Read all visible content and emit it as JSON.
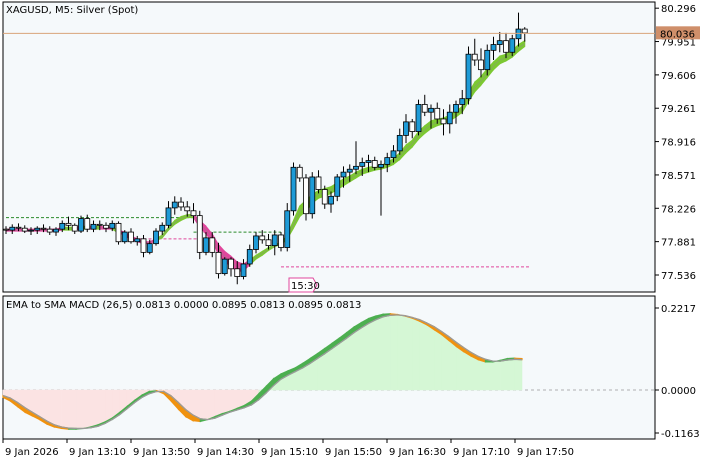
{
  "header": {
    "title": "XAGUSD, M5:  Silver (Spot)"
  },
  "indicator": {
    "title": "EMA to SMA MACD (26,5) 0.0813 0.0000 0.0895 0.0813 0.0895 0.0813"
  },
  "time_marker": {
    "label": "15:30"
  },
  "current_price": {
    "label": "80.036",
    "value": 80.036
  },
  "price_axis": {
    "ticks": [
      "80.296",
      "79.951",
      "79.606",
      "79.261",
      "78.916",
      "78.571",
      "78.226",
      "77.881",
      "77.536"
    ]
  },
  "macd_axis": {
    "ticks": [
      "0.2217",
      "0.0000",
      "-0.1163"
    ]
  },
  "time_axis": {
    "ticks": [
      "9 Jan 2026",
      "9 Jan 13:10",
      "9 Jan 13:50",
      "9 Jan 14:30",
      "9 Jan 15:10",
      "9 Jan 15:50",
      "9 Jan 16:30",
      "9 Jan 17:10",
      "9 Jan 17:50"
    ]
  },
  "colors": {
    "background": "#f5f9fb",
    "bull_candle": "#1e9bd7",
    "bear_candle": "#ffffff",
    "ribbon_up": "#7cc832",
    "ribbon_down": "#e0479c",
    "stop_up": "#2a8a2a",
    "stop_down": "#e0479c",
    "macd_up": "#4caf50",
    "macd_down": "#f0920f",
    "fill_pos": "#d5f7d5",
    "fill_neg": "#fbe3e3",
    "price_line": "#d9a47a",
    "label_box": "#cf8f6a"
  },
  "chart_data": [
    {
      "type": "candlestick",
      "title": "XAGUSD, M5:  Silver (Spot)",
      "ylim": [
        77.36,
        80.36
      ],
      "y_ticks": [
        80.296,
        79.951,
        79.606,
        79.261,
        78.916,
        78.571,
        78.226,
        77.881,
        77.536
      ],
      "current_price": 80.036,
      "x_tick_labels": [
        "9 Jan 2026",
        "9 Jan 13:10",
        "9 Jan 13:50",
        "9 Jan 14:30",
        "9 Jan 15:10",
        "9 Jan 15:50",
        "9 Jan 16:30",
        "9 Jan 17:10",
        "9 Jan 17:50"
      ],
      "candles": [
        [
          78.01,
          78.04,
          77.96,
          78.0
        ],
        [
          78.0,
          78.06,
          77.96,
          78.03
        ],
        [
          78.03,
          78.07,
          77.99,
          78.02
        ],
        [
          78.02,
          78.05,
          77.97,
          77.99
        ],
        [
          77.99,
          78.03,
          77.95,
          78.0
        ],
        [
          78.0,
          78.04,
          77.96,
          78.02
        ],
        [
          78.02,
          78.06,
          77.98,
          78.01
        ],
        [
          78.01,
          78.04,
          77.95,
          77.98
        ],
        [
          77.98,
          78.03,
          77.94,
          78.01
        ],
        [
          78.01,
          78.1,
          77.98,
          78.07
        ],
        [
          78.07,
          78.14,
          78.0,
          78.05
        ],
        [
          78.05,
          78.07,
          77.96,
          77.99
        ],
        [
          77.99,
          78.15,
          77.97,
          78.12
        ],
        [
          78.12,
          78.16,
          77.98,
          78.01
        ],
        [
          78.01,
          78.1,
          77.98,
          78.06
        ],
        [
          78.06,
          78.1,
          78.0,
          78.05
        ],
        [
          78.05,
          78.08,
          77.98,
          78.02
        ],
        [
          78.02,
          78.1,
          77.99,
          78.07
        ],
        [
          78.07,
          78.09,
          77.85,
          77.88
        ],
        [
          77.88,
          78.0,
          77.86,
          77.98
        ],
        [
          77.98,
          78.02,
          77.86,
          77.88
        ],
        [
          77.88,
          77.94,
          77.84,
          77.91
        ],
        [
          77.91,
          77.95,
          77.72,
          77.77
        ],
        [
          77.77,
          77.9,
          77.75,
          77.86
        ],
        [
          77.86,
          78.02,
          77.84,
          77.99
        ],
        [
          77.99,
          78.08,
          77.95,
          78.05
        ],
        [
          78.05,
          78.3,
          78.02,
          78.23
        ],
        [
          78.23,
          78.35,
          78.16,
          78.29
        ],
        [
          78.29,
          78.34,
          78.2,
          78.24
        ],
        [
          78.24,
          78.3,
          78.14,
          78.2
        ],
        [
          78.2,
          78.28,
          78.07,
          78.15
        ],
        [
          78.15,
          78.2,
          77.7,
          77.77
        ],
        [
          77.77,
          77.98,
          77.74,
          77.92
        ],
        [
          77.92,
          77.98,
          77.72,
          77.77
        ],
        [
          77.77,
          77.87,
          77.5,
          77.55
        ],
        [
          77.55,
          77.72,
          77.53,
          77.7
        ],
        [
          77.7,
          77.72,
          77.52,
          77.6
        ],
        [
          77.6,
          77.68,
          77.44,
          77.52
        ],
        [
          77.52,
          77.7,
          77.49,
          77.65
        ],
        [
          77.65,
          77.85,
          77.62,
          77.8
        ],
        [
          77.8,
          77.98,
          77.76,
          77.94
        ],
        [
          77.94,
          78.0,
          77.86,
          77.9
        ],
        [
          77.9,
          77.96,
          77.8,
          77.84
        ],
        [
          77.84,
          78.0,
          77.74,
          77.95
        ],
        [
          77.95,
          77.98,
          77.78,
          77.82
        ],
        [
          77.82,
          78.28,
          77.78,
          78.2
        ],
        [
          78.2,
          78.7,
          78.15,
          78.65
        ],
        [
          78.65,
          78.68,
          78.5,
          78.54
        ],
        [
          78.54,
          78.58,
          78.1,
          78.17
        ],
        [
          78.17,
          78.6,
          78.12,
          78.55
        ],
        [
          78.55,
          78.62,
          78.38,
          78.42
        ],
        [
          78.42,
          78.46,
          78.22,
          78.27
        ],
        [
          78.27,
          78.4,
          78.18,
          78.35
        ],
        [
          78.35,
          78.58,
          78.3,
          78.55
        ],
        [
          78.55,
          78.66,
          78.44,
          78.6
        ],
        [
          78.6,
          78.68,
          78.5,
          78.63
        ],
        [
          78.63,
          78.92,
          78.58,
          78.66
        ],
        [
          78.66,
          78.75,
          78.56,
          78.7
        ],
        [
          78.7,
          78.78,
          78.6,
          78.72
        ],
        [
          78.72,
          78.76,
          78.62,
          78.65
        ],
        [
          78.65,
          78.72,
          78.15,
          78.68
        ],
        [
          78.68,
          78.8,
          78.6,
          78.75
        ],
        [
          78.75,
          78.88,
          78.7,
          78.82
        ],
        [
          78.82,
          79.05,
          78.78,
          78.98
        ],
        [
          78.98,
          79.2,
          78.9,
          79.12
        ],
        [
          79.12,
          79.15,
          78.95,
          79.02
        ],
        [
          79.02,
          79.35,
          78.98,
          79.3
        ],
        [
          79.3,
          79.4,
          79.18,
          79.22
        ],
        [
          79.22,
          79.3,
          79.05,
          79.26
        ],
        [
          79.26,
          79.32,
          79.1,
          79.15
        ],
        [
          79.15,
          79.25,
          78.98,
          79.1
        ],
        [
          79.1,
          79.3,
          79.0,
          79.22
        ],
        [
          79.22,
          79.34,
          79.1,
          79.3
        ],
        [
          79.3,
          79.45,
          79.2,
          79.36
        ],
        [
          79.36,
          79.9,
          79.3,
          79.82
        ],
        [
          79.82,
          79.98,
          79.7,
          79.76
        ],
        [
          79.76,
          79.88,
          79.58,
          79.66
        ],
        [
          79.66,
          79.92,
          79.6,
          79.86
        ],
        [
          79.86,
          80.0,
          79.76,
          79.92
        ],
        [
          79.92,
          80.05,
          79.84,
          79.96
        ],
        [
          79.96,
          80.04,
          79.78,
          79.84
        ],
        [
          79.84,
          80.02,
          79.8,
          79.98
        ],
        [
          79.98,
          80.25,
          79.9,
          80.08
        ],
        [
          80.08,
          80.1,
          79.95,
          80.04
        ]
      ],
      "ribbon": [
        [
          78.01,
          77.99
        ],
        [
          78.01,
          77.99
        ],
        [
          78.01,
          77.99
        ],
        [
          78.01,
          77.99
        ],
        [
          78.01,
          77.99
        ],
        [
          78.01,
          77.99
        ],
        [
          78.01,
          77.99
        ],
        [
          78.01,
          77.99
        ],
        [
          78.01,
          77.99
        ],
        [
          78.03,
          78.0
        ],
        [
          78.03,
          78.0
        ],
        [
          78.03,
          78.0
        ],
        [
          78.04,
          78.01
        ],
        [
          78.04,
          78.01
        ],
        [
          78.04,
          78.01
        ],
        [
          78.04,
          78.01
        ],
        [
          78.03,
          78.01
        ],
        [
          78.03,
          78.01
        ],
        [
          78.0,
          77.97
        ],
        [
          77.98,
          77.95
        ],
        [
          77.94,
          77.9
        ],
        [
          77.91,
          77.88
        ],
        [
          77.88,
          77.86
        ],
        [
          77.88,
          77.86
        ],
        [
          77.91,
          77.89
        ],
        [
          77.95,
          77.92
        ],
        [
          78.03,
          78.0
        ],
        [
          78.1,
          78.06
        ],
        [
          78.14,
          78.1
        ],
        [
          78.16,
          78.13
        ],
        [
          78.16,
          78.13
        ],
        [
          78.1,
          78.03
        ],
        [
          78.04,
          77.96
        ],
        [
          77.96,
          77.88
        ],
        [
          77.85,
          77.75
        ],
        [
          77.78,
          77.67
        ],
        [
          77.73,
          77.63
        ],
        [
          77.67,
          77.57
        ],
        [
          77.65,
          77.58
        ],
        [
          77.69,
          77.64
        ],
        [
          77.74,
          77.7
        ],
        [
          77.78,
          77.74
        ],
        [
          77.82,
          77.79
        ],
        [
          77.85,
          77.83
        ],
        [
          77.87,
          77.85
        ],
        [
          77.95,
          77.91
        ],
        [
          78.1,
          78.02
        ],
        [
          78.25,
          78.14
        ],
        [
          78.31,
          78.2
        ],
        [
          78.37,
          78.28
        ],
        [
          78.41,
          78.33
        ],
        [
          78.43,
          78.35
        ],
        [
          78.45,
          78.38
        ],
        [
          78.49,
          78.42
        ],
        [
          78.53,
          78.46
        ],
        [
          78.56,
          78.5
        ],
        [
          78.6,
          78.54
        ],
        [
          78.63,
          78.58
        ],
        [
          78.65,
          78.6
        ],
        [
          78.66,
          78.62
        ],
        [
          78.67,
          78.63
        ],
        [
          78.7,
          78.65
        ],
        [
          78.74,
          78.68
        ],
        [
          78.8,
          78.73
        ],
        [
          78.88,
          78.8
        ],
        [
          78.93,
          78.86
        ],
        [
          79.02,
          78.94
        ],
        [
          79.08,
          79.0
        ],
        [
          79.13,
          79.05
        ],
        [
          79.15,
          79.08
        ],
        [
          79.16,
          79.1
        ],
        [
          79.19,
          79.13
        ],
        [
          79.23,
          79.17
        ],
        [
          79.28,
          79.22
        ],
        [
          79.42,
          79.33
        ],
        [
          79.53,
          79.43
        ],
        [
          79.59,
          79.5
        ],
        [
          79.67,
          79.58
        ],
        [
          79.74,
          79.66
        ],
        [
          79.8,
          79.72
        ],
        [
          79.82,
          79.75
        ],
        [
          79.86,
          79.79
        ],
        [
          79.92,
          79.85
        ],
        [
          79.96,
          79.9
        ]
      ],
      "ribbon_dir": [
        "d",
        "d",
        "d",
        "d",
        "d",
        "d",
        "d",
        "d",
        "d",
        "u",
        "u",
        "d",
        "u",
        "d",
        "u",
        "d",
        "d",
        "u",
        "d",
        "d",
        "d",
        "d",
        "d",
        "d",
        "u",
        "u",
        "u",
        "u",
        "u",
        "u",
        "d",
        "d",
        "d",
        "d",
        "d",
        "d",
        "d",
        "d",
        "d",
        "u",
        "u",
        "u",
        "u",
        "u",
        "u",
        "u",
        "u",
        "u",
        "u",
        "u",
        "u",
        "u",
        "u",
        "u",
        "u",
        "u",
        "u",
        "u",
        "u",
        "u",
        "u",
        "u",
        "u",
        "u",
        "u",
        "u",
        "u",
        "u",
        "u",
        "u",
        "u",
        "u",
        "u",
        "u",
        "u",
        "u",
        "u",
        "u",
        "u",
        "u",
        "u",
        "u",
        "u",
        "u"
      ],
      "stops": [
        {
          "type": "up",
          "y": 78.13,
          "from": 0,
          "to": 30
        },
        {
          "type": "up",
          "y": 77.98,
          "from": 30,
          "to": 44
        },
        {
          "type": "down",
          "y": 77.91,
          "from": 18,
          "to": 31
        },
        {
          "type": "down",
          "y": 77.62,
          "from": 44,
          "to": 84
        }
      ]
    },
    {
      "type": "area",
      "title": "EMA to SMA MACD (26,5) 0.0813 0.0000 0.0895 0.0813 0.0895 0.0813",
      "ylim": [
        -0.1163,
        0.2217
      ],
      "y_ticks": [
        0.2217,
        0.0,
        -0.1163
      ],
      "series": [
        {
          "values": [
            -0.02,
            -0.03,
            -0.045,
            -0.06,
            -0.07,
            -0.08,
            -0.092,
            -0.1,
            -0.104,
            -0.106,
            -0.106,
            -0.104,
            -0.1,
            -0.094,
            -0.086,
            -0.075,
            -0.06,
            -0.044,
            -0.028,
            -0.014,
            -0.004,
            -0.002,
            -0.01,
            -0.03,
            -0.052,
            -0.072,
            -0.083,
            -0.085,
            -0.08,
            -0.072,
            -0.064,
            -0.058,
            -0.05,
            -0.042,
            -0.03,
            -0.01,
            0.01,
            0.03,
            0.043,
            0.052,
            0.06,
            0.072,
            0.085,
            0.098,
            0.112,
            0.126,
            0.14,
            0.155,
            0.17,
            0.182,
            0.193,
            0.2,
            0.205,
            0.206,
            0.204,
            0.2,
            0.194,
            0.186,
            0.176,
            0.163,
            0.15,
            0.134,
            0.118,
            0.104,
            0.092,
            0.082,
            0.076,
            0.076,
            0.08,
            0.085,
            0.086,
            0.085
          ]
        },
        {
          "values": [
            -0.015,
            -0.022,
            -0.034,
            -0.048,
            -0.06,
            -0.072,
            -0.084,
            -0.094,
            -0.1,
            -0.103,
            -0.104,
            -0.104,
            -0.102,
            -0.098,
            -0.09,
            -0.079,
            -0.066,
            -0.05,
            -0.034,
            -0.02,
            -0.01,
            -0.004,
            -0.004,
            -0.016,
            -0.034,
            -0.053,
            -0.068,
            -0.078,
            -0.08,
            -0.076,
            -0.068,
            -0.06,
            -0.054,
            -0.048,
            -0.04,
            -0.026,
            -0.008,
            0.012,
            0.029,
            0.04,
            0.05,
            0.06,
            0.072,
            0.085,
            0.098,
            0.112,
            0.126,
            0.14,
            0.155,
            0.168,
            0.18,
            0.19,
            0.198,
            0.202,
            0.203,
            0.201,
            0.196,
            0.19,
            0.181,
            0.171,
            0.158,
            0.144,
            0.129,
            0.115,
            0.102,
            0.091,
            0.083,
            0.078,
            0.078,
            0.081,
            0.083,
            0.082
          ]
        }
      ]
    }
  ]
}
